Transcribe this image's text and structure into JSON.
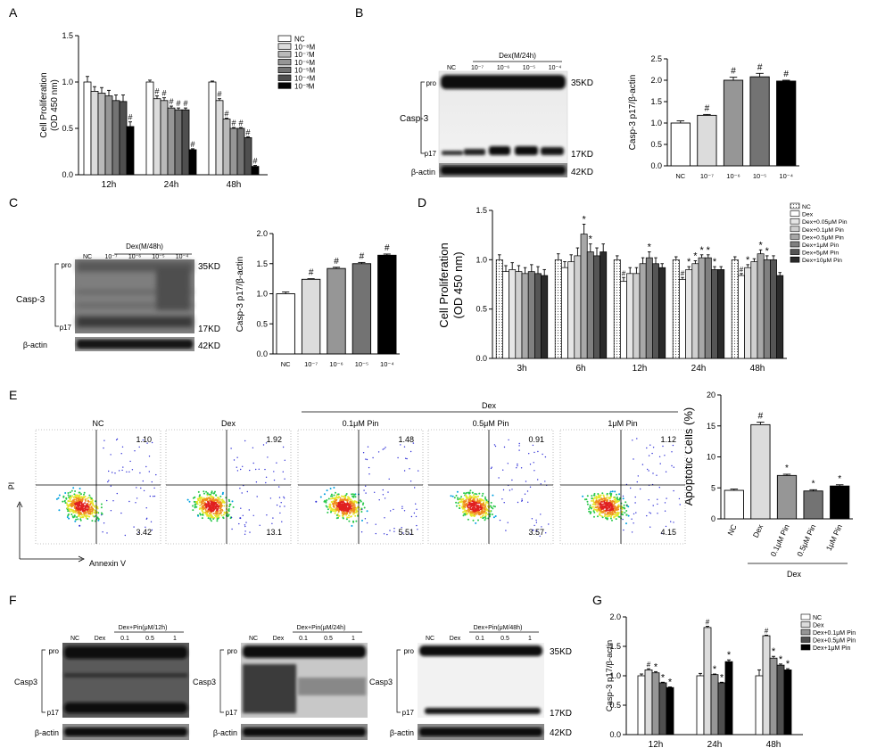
{
  "panels": {
    "A": "A",
    "B": "B",
    "C": "C",
    "D": "D",
    "E": "E",
    "F": "F",
    "G": "G"
  },
  "colors": {
    "nc": "#ffffff",
    "g1": "#dcdcdc",
    "g2": "#b9b9b9",
    "g3": "#969696",
    "g4": "#737373",
    "g5": "#4f4f4f",
    "g6": "#2b2b2b",
    "black": "#000000",
    "blot_bg": "#9a9a9a",
    "blot_band": "#111111",
    "flow_axis": "#444444"
  },
  "chart_data": [
    {
      "panel": "A",
      "type": "bar",
      "ylabel": [
        "Cell Proliferation",
        "(OD 450 nm)"
      ],
      "ylim": [
        0,
        1.5
      ],
      "yticks": [
        "0.0",
        "0.5",
        "1.0",
        "1.5"
      ],
      "categories": [
        "12h",
        "24h",
        "48h"
      ],
      "legend": [
        "NC",
        "10⁻⁸M",
        "10⁻⁷M",
        "10⁻⁶M",
        "10⁻⁵M",
        "10⁻⁴M",
        "10⁻³M"
      ],
      "values": [
        [
          1.0,
          0.9,
          0.88,
          0.85,
          0.8,
          0.79,
          0.52
        ],
        [
          1.0,
          0.82,
          0.8,
          0.72,
          0.7,
          0.7,
          0.27
        ],
        [
          1.0,
          0.8,
          0.6,
          0.5,
          0.5,
          0.4,
          0.09
        ]
      ],
      "errors": [
        [
          0.06,
          0.05,
          0.06,
          0.06,
          0.06,
          0.07,
          0.05
        ],
        [
          0.02,
          0.03,
          0.03,
          0.02,
          0.02,
          0.02,
          0.01
        ],
        [
          0.01,
          0.02,
          0.01,
          0.01,
          0.01,
          0.01,
          0.01
        ]
      ],
      "marks": [
        [
          "",
          "",
          "",
          "",
          "",
          "",
          "#"
        ],
        [
          "",
          "#",
          "#",
          "#",
          "#",
          "#",
          "#"
        ],
        [
          "",
          "#",
          "#",
          "#",
          "#",
          "#",
          "#"
        ]
      ]
    },
    {
      "panel": "B",
      "type": "bar",
      "ylabel": "Casp-3 p17/β-actin",
      "ylim": [
        0,
        2.5
      ],
      "yticks": [
        "0.0",
        "0.5",
        "1.0",
        "1.5",
        "2.0",
        "2.5"
      ],
      "categories": [
        "NC",
        "10⁻⁷",
        "10⁻⁶",
        "10⁻⁵",
        "10⁻⁴"
      ],
      "values": [
        1.0,
        1.18,
        2.0,
        2.08,
        1.98
      ],
      "errors": [
        0.05,
        0.02,
        0.07,
        0.08,
        0.02
      ],
      "marks": [
        "",
        "#",
        "#",
        "#",
        "#"
      ]
    },
    {
      "panel": "C",
      "type": "bar",
      "ylabel": "Casp-3 p17/β-actin",
      "ylim": [
        0,
        2.0
      ],
      "yticks": [
        "0.0",
        "0.5",
        "1.0",
        "1.5",
        "2.0"
      ],
      "categories": [
        "NC",
        "10⁻⁷",
        "10⁻⁶",
        "10⁻⁵",
        "10⁻⁴"
      ],
      "values": [
        1.0,
        1.24,
        1.42,
        1.5,
        1.64
      ],
      "errors": [
        0.03,
        0.01,
        0.02,
        0.02,
        0.02
      ],
      "marks": [
        "",
        "#",
        "#",
        "#",
        "#"
      ]
    },
    {
      "panel": "D",
      "type": "bar",
      "ylabel": [
        "Cell Proliferation",
        "(OD 450 nm)"
      ],
      "ylim": [
        0,
        1.5
      ],
      "yticks": [
        "0.0",
        "0.5",
        "1.0",
        "1.5"
      ],
      "categories": [
        "3h",
        "6h",
        "12h",
        "24h",
        "48h"
      ],
      "legend": [
        "NC",
        "Dex",
        "Dex+0.05μM Pin",
        "Dex+0.1μM Pin",
        "Dex+0.5μM Pin",
        "Dex+1μM Pin",
        "Dex+5μM Pin",
        "Dex+10μM Pin"
      ],
      "values": [
        [
          1.0,
          0.88,
          0.9,
          0.88,
          0.86,
          0.88,
          0.86,
          0.84
        ],
        [
          1.0,
          0.92,
          0.98,
          1.04,
          1.26,
          1.08,
          1.04,
          1.08
        ],
        [
          1.0,
          0.78,
          0.86,
          0.86,
          0.96,
          1.02,
          0.96,
          0.92
        ],
        [
          1.0,
          0.8,
          0.9,
          0.96,
          1.02,
          1.02,
          0.9,
          0.9
        ],
        [
          1.0,
          0.84,
          0.92,
          0.98,
          1.06,
          1.0,
          1.0,
          0.84
        ]
      ],
      "errors": [
        [
          0.05,
          0.06,
          0.07,
          0.06,
          0.06,
          0.07,
          0.07,
          0.06
        ],
        [
          0.06,
          0.06,
          0.07,
          0.08,
          0.1,
          0.08,
          0.08,
          0.08
        ],
        [
          0.04,
          0.04,
          0.06,
          0.06,
          0.06,
          0.06,
          0.06,
          0.04
        ],
        [
          0.03,
          0.02,
          0.03,
          0.03,
          0.03,
          0.03,
          0.03,
          0.03
        ],
        [
          0.03,
          0.02,
          0.03,
          0.03,
          0.04,
          0.04,
          0.04,
          0.03
        ]
      ],
      "marks": [
        [
          "",
          "",
          "",
          "",
          "",
          "",
          "",
          ""
        ],
        [
          "",
          "",
          "",
          "",
          "*",
          "*",
          "",
          ""
        ],
        [
          "",
          "#",
          "",
          "",
          "",
          "*",
          "",
          ""
        ],
        [
          "",
          "#",
          "*",
          "*",
          "*",
          "*",
          "*",
          ""
        ],
        [
          "",
          "#",
          "*",
          "",
          "*",
          "*",
          "",
          ""
        ]
      ]
    },
    {
      "panel": "E",
      "type": "bar",
      "ylabel": "Apoptotic Cells (%)",
      "ylim": [
        0,
        20
      ],
      "yticks": [
        "0",
        "5",
        "10",
        "15",
        "20"
      ],
      "categories": [
        "NC",
        "Dex",
        "0.1μM Pin",
        "0.5μM Pin",
        "1μM Pin"
      ],
      "group_label": "Dex",
      "values": [
        4.6,
        15.2,
        7.0,
        4.5,
        5.3
      ],
      "errors": [
        0.2,
        0.4,
        0.2,
        0.2,
        0.2
      ],
      "marks": [
        "",
        "#",
        "*",
        "*",
        "*"
      ]
    },
    {
      "panel": "G",
      "type": "bar",
      "ylabel": "Casp-3 p17/β-actin",
      "ylim": [
        0,
        2.0
      ],
      "yticks": [
        "0.0",
        "0.5",
        "1.0",
        "1.5",
        "2.0"
      ],
      "categories": [
        "12h",
        "24h",
        "48h"
      ],
      "legend": [
        "NC",
        "Dex",
        "Dex+0.1μM Pin",
        "Dex+0.5μM Pin",
        "Dex+1μM Pin"
      ],
      "values": [
        [
          1.0,
          1.1,
          1.05,
          0.88,
          0.8
        ],
        [
          1.0,
          1.82,
          1.02,
          0.88,
          1.24
        ],
        [
          1.0,
          1.68,
          1.3,
          1.18,
          1.1
        ]
      ],
      "errors": [
        [
          0.03,
          0.02,
          0.02,
          0.01,
          0.01
        ],
        [
          0.04,
          0.02,
          0.01,
          0.01,
          0.03
        ],
        [
          0.1,
          0.01,
          0.03,
          0.02,
          0.02
        ]
      ],
      "marks": [
        [
          "",
          "#",
          "*",
          "*",
          "*"
        ],
        [
          "",
          "#",
          "*",
          "*",
          "*"
        ],
        [
          "",
          "#",
          "*",
          "*",
          "*"
        ]
      ]
    }
  ],
  "blotB": {
    "header": "Dex(M/24h)",
    "lanes": [
      "NC",
      "10⁻⁷",
      "10⁻⁶",
      "10⁻⁵",
      "10⁻⁴"
    ],
    "row_label": "Casp-3",
    "pro": "pro",
    "p17": "p17",
    "actin": "β-actin",
    "kd_top": "35KD",
    "kd_mid": "17KD",
    "kd_actin": "42KD"
  },
  "blotC": {
    "header": "Dex(M/48h)",
    "lanes": [
      "NC",
      "10⁻⁷",
      "10⁻⁶",
      "10⁻⁵",
      "10⁻⁴"
    ],
    "row_label": "Casp-3",
    "pro": "pro",
    "p17": "p17",
    "actin": "β-actin",
    "kd_top": "35KD",
    "kd_mid": "17KD",
    "kd_actin": "42KD"
  },
  "flow": {
    "top_label": "Dex",
    "titles": [
      "NC",
      "Dex",
      "0.1μM Pin",
      "0.5μM Pin",
      "1μM Pin"
    ],
    "upper_right": [
      "1.10",
      "1.92",
      "1.48",
      "0.91",
      "1.12"
    ],
    "lower_right": [
      "3.42",
      "13.1",
      "5.51",
      "3.57",
      "4.15"
    ],
    "ylabel": "PI",
    "xlabel": "Annexin V"
  },
  "blotF": [
    {
      "header": "Dex+Pin(μM/12h)",
      "lanes": [
        "NC",
        "Dex",
        "0.1",
        "0.5",
        "1"
      ],
      "row_label": "Casp3",
      "pro": "pro",
      "p17": "p17",
      "actin": "β-actin"
    },
    {
      "header": "Dex+Pin(μM/24h)",
      "lanes": [
        "NC",
        "Dex",
        "0.1",
        "0.5",
        "1"
      ],
      "row_label": "Casp3",
      "pro": "pro",
      "p17": "p17",
      "actin": "β-actin"
    },
    {
      "header": "Dex+Pin(μM/48h)",
      "lanes": [
        "NC",
        "Dex",
        "0.1",
        "0.5",
        "1"
      ],
      "row_label": "Casp3",
      "pro": "pro",
      "p17": "p17",
      "actin": "β-actin",
      "kd_top": "35KD",
      "kd_mid": "17KD",
      "kd_actin": "42KD"
    }
  ]
}
